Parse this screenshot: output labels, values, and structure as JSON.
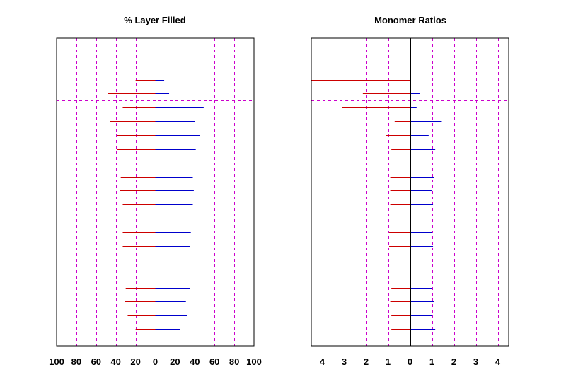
{
  "colors": {
    "left_series": "#cc0000",
    "right_series": "#0000cc",
    "grid": "#cc00cc",
    "axis": "#000000"
  },
  "chart_data": [
    {
      "type": "bar",
      "orientation": "horizontal-diverging",
      "title": "% Layer Filled",
      "xlim": [
        -100,
        100
      ],
      "tick_values": [
        -100,
        -80,
        -60,
        -40,
        -20,
        0,
        20,
        40,
        60,
        80,
        100
      ],
      "tick_labels": [
        "100",
        "80",
        "60",
        "40",
        "20",
        "0",
        "20",
        "40",
        "60",
        "80",
        "100"
      ],
      "grid": true,
      "rows": 21,
      "separator_after_row": 3,
      "series": [
        {
          "color": "#cc0000",
          "values": [
            -9,
            -20,
            -48,
            -33,
            -46,
            -39,
            -39,
            -38,
            -35,
            -36,
            -33,
            -36,
            -33,
            -33,
            -31,
            -32,
            -30,
            -31,
            -28,
            -20
          ]
        },
        {
          "color": "#0000cc",
          "values": [
            0,
            9,
            14,
            49,
            40,
            45,
            41,
            41,
            38,
            39,
            38,
            37,
            36,
            35,
            36,
            34,
            35,
            31,
            32,
            25
          ]
        }
      ]
    },
    {
      "type": "bar",
      "orientation": "horizontal-diverging",
      "title": "Monomer Ratios",
      "xlim": [
        -4.5,
        4.5
      ],
      "tick_values": [
        -4,
        -3,
        -2,
        -1,
        0,
        1,
        2,
        3,
        4
      ],
      "tick_labels": [
        "4",
        "3",
        "2",
        "1",
        "0",
        "1",
        "2",
        "3",
        "4"
      ],
      "grid": true,
      "rows": 21,
      "separator_after_row": 3,
      "series": [
        {
          "color": "#cc0000",
          "values": [
            -4.5,
            -4.5,
            -2.15,
            -3.1,
            -0.7,
            -1.1,
            -0.85,
            -0.9,
            -0.9,
            -0.9,
            -0.9,
            -0.85,
            -0.95,
            -0.95,
            -0.95,
            -0.85,
            -0.85,
            -0.9,
            -0.85,
            -0.85
          ]
        },
        {
          "color": "#0000cc",
          "values": [
            0,
            0,
            0.45,
            0.3,
            1.45,
            0.85,
            1.15,
            1.05,
            1.1,
            1.0,
            1.05,
            1.1,
            1.0,
            1.05,
            1.0,
            1.15,
            1.0,
            1.1,
            1.0,
            1.15
          ]
        }
      ]
    }
  ]
}
